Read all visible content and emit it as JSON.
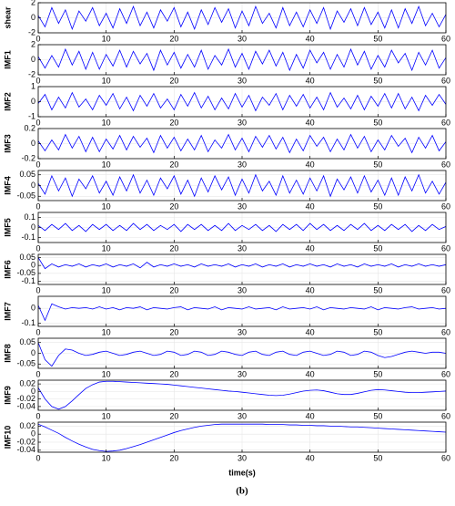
{
  "chart_data": {
    "type": "line",
    "color": "#0000ff",
    "grid": true,
    "xlabel": "time(s)",
    "caption": "(b)",
    "xlim": [
      0,
      60
    ],
    "xticks": [
      0,
      10,
      20,
      30,
      40,
      50,
      60
    ],
    "x": [
      0,
      1,
      2,
      3,
      4,
      5,
      6,
      7,
      8,
      9,
      10,
      11,
      12,
      13,
      14,
      15,
      16,
      17,
      18,
      19,
      20,
      21,
      22,
      23,
      24,
      25,
      26,
      27,
      28,
      29,
      30,
      31,
      32,
      33,
      34,
      35,
      36,
      37,
      38,
      39,
      40,
      41,
      42,
      43,
      44,
      45,
      46,
      47,
      48,
      49,
      50,
      51,
      52,
      53,
      54,
      55,
      56,
      57,
      58,
      59,
      60
    ],
    "panels": [
      {
        "name": "shear",
        "ylim": [
          -2,
          2
        ],
        "yticks": [
          -2,
          0,
          2
        ],
        "values": [
          0.3,
          -1.2,
          1.35,
          -0.75,
          1.05,
          -1.5,
          0.9,
          -0.45,
          1.35,
          -1.05,
          0.6,
          -1.35,
          1.2,
          -0.75,
          1.5,
          -1.05,
          0.75,
          -1.35,
          1.05,
          -0.45,
          1.35,
          -1.2,
          0.75,
          -1.5,
          1.05,
          -0.9,
          1.35,
          -0.6,
          1.2,
          -1.35,
          0.9,
          -1.05,
          1.5,
          -0.75,
          0.6,
          -1.35,
          1.35,
          -1.05,
          0.75,
          -1.2,
          1.05,
          -0.75,
          1.35,
          -1.5,
          0.9,
          -0.6,
          1.2,
          -1.05,
          1.35,
          -0.9,
          0.75,
          -1.35,
          1.05,
          -1.35,
          1.2,
          -0.75,
          1.5,
          -1.05,
          0.6,
          -1.2,
          0.45
        ]
      },
      {
        "name": "IMF1",
        "ylim": [
          -2,
          2
        ],
        "yticks": [
          -2,
          0,
          2
        ],
        "values": [
          0.42,
          -1.12,
          0.56,
          -0.98,
          1.4,
          -0.7,
          1.12,
          -1.26,
          0.98,
          -1.26,
          0.7,
          -0.84,
          1.26,
          -0.98,
          1.12,
          -0.56,
          0.84,
          -1.4,
          1.26,
          -0.7,
          0.98,
          -1.12,
          0.7,
          -0.98,
          1.26,
          -1.26,
          0.56,
          -0.7,
          1.4,
          -0.98,
          0.84,
          -1.26,
          1.12,
          -0.56,
          1.26,
          -0.84,
          0.98,
          -1.4,
          0.7,
          -1.12,
          1.26,
          -0.42,
          0.98,
          -1.26,
          0.7,
          -0.98,
          1.4,
          -0.7,
          1.12,
          -1.26,
          0.56,
          -0.98,
          1.26,
          -0.42,
          0.84,
          -1.4,
          0.98,
          -0.7,
          1.26,
          -1.12,
          0.28
        ]
      },
      {
        "name": "IMF2",
        "ylim": [
          -1,
          1
        ],
        "yticks": [
          -1,
          0,
          1
        ],
        "values": [
          -0.12,
          0.48,
          -0.54,
          0.3,
          -0.42,
          0.6,
          -0.36,
          0.18,
          -0.54,
          0.42,
          -0.24,
          0.54,
          -0.48,
          0.3,
          -0.6,
          0.42,
          -0.3,
          0.54,
          -0.42,
          0.18,
          -0.54,
          0.48,
          -0.3,
          0.6,
          -0.42,
          0.36,
          -0.54,
          0.24,
          -0.48,
          0.54,
          -0.36,
          0.42,
          -0.6,
          0.3,
          -0.24,
          0.54,
          -0.54,
          0.42,
          -0.3,
          0.48,
          -0.42,
          0.3,
          -0.54,
          0.6,
          -0.36,
          0.24,
          -0.48,
          0.42,
          -0.54,
          0.36,
          -0.3,
          0.54,
          -0.42,
          0.54,
          -0.48,
          0.3,
          -0.6,
          0.42,
          -0.24,
          0.48,
          -0.18
        ]
      },
      {
        "name": "IMF3",
        "ylim": [
          -0.2,
          0.2
        ],
        "yticks": [
          -0.2,
          0,
          0.2
        ],
        "values": [
          0.036,
          -0.096,
          0.048,
          -0.084,
          0.12,
          -0.06,
          0.096,
          -0.108,
          0.084,
          -0.108,
          0.06,
          -0.072,
          0.108,
          -0.084,
          0.096,
          -0.048,
          0.072,
          -0.12,
          0.108,
          -0.06,
          0.084,
          -0.096,
          0.06,
          -0.084,
          0.108,
          -0.108,
          0.048,
          -0.06,
          0.12,
          -0.084,
          0.072,
          -0.108,
          0.096,
          -0.048,
          0.108,
          -0.072,
          0.084,
          -0.12,
          0.06,
          -0.096,
          0.108,
          -0.036,
          0.084,
          -0.108,
          0.06,
          -0.084,
          0.12,
          -0.06,
          0.096,
          -0.108,
          0.048,
          -0.084,
          0.108,
          -0.036,
          0.072,
          -0.12,
          0.084,
          -0.06,
          0.108,
          -0.096,
          0.024
        ]
      },
      {
        "name": "IMF4",
        "ylim": [
          -0.07,
          0.07
        ],
        "yticks": [
          -0.05,
          0,
          0.05
        ],
        "values": [
          0.01,
          -0.04,
          0.045,
          -0.025,
          0.035,
          -0.05,
          0.03,
          -0.015,
          0.045,
          -0.035,
          0.02,
          -0.045,
          0.04,
          -0.025,
          0.05,
          -0.035,
          0.025,
          -0.045,
          0.035,
          -0.015,
          0.045,
          -0.04,
          0.025,
          -0.05,
          0.035,
          -0.03,
          0.045,
          -0.02,
          0.04,
          -0.045,
          0.03,
          -0.035,
          0.05,
          -0.025,
          0.02,
          -0.045,
          0.045,
          -0.035,
          0.025,
          -0.04,
          0.035,
          -0.025,
          0.045,
          -0.05,
          0.03,
          -0.02,
          0.04,
          -0.035,
          0.045,
          -0.03,
          0.025,
          -0.045,
          0.035,
          -0.045,
          0.04,
          -0.025,
          0.05,
          -0.035,
          0.02,
          -0.04,
          0.015
        ]
      },
      {
        "name": "IMF5",
        "ylim": [
          -0.15,
          0.15
        ],
        "yticks": [
          -0.1,
          0,
          0.1
        ],
        "values": [
          0.02,
          -0.03,
          0.03,
          -0.02,
          0.04,
          -0.03,
          0.02,
          -0.04,
          0.03,
          -0.02,
          0.03,
          -0.03,
          0.02,
          -0.03,
          0.04,
          -0.02,
          0.03,
          -0.03,
          0.02,
          -0.02,
          0.03,
          -0.04,
          0.03,
          -0.02,
          0.03,
          -0.03,
          0.02,
          -0.03,
          0.04,
          -0.03,
          0.02,
          -0.02,
          0.03,
          -0.03,
          0.02,
          -0.04,
          0.03,
          -0.02,
          0.03,
          -0.03,
          0.04,
          -0.02,
          0.03,
          -0.03,
          0.02,
          -0.03,
          0.03,
          -0.02,
          0.04,
          -0.03,
          0.02,
          -0.03,
          0.03,
          -0.02,
          0.03,
          -0.04,
          0.02,
          -0.03,
          0.03,
          -0.02,
          0.01
        ]
      },
      {
        "name": "IMF6",
        "ylim": [
          -0.12,
          0.07
        ],
        "yticks": [
          -0.1,
          -0.05,
          0,
          0.05
        ],
        "values": [
          0.05,
          -0.02,
          0.01,
          -0.01,
          0.005,
          -0.005,
          0.01,
          -0.01,
          0.005,
          -0.005,
          0.01,
          -0.01,
          0.005,
          -0.005,
          0.01,
          -0.015,
          0.02,
          -0.01,
          0.005,
          -0.005,
          0.01,
          -0.005,
          0.005,
          -0.01,
          0.01,
          -0.005,
          0.005,
          -0.005,
          0.01,
          -0.01,
          0.005,
          -0.005,
          0.01,
          -0.01,
          0.005,
          -0.005,
          0.01,
          -0.01,
          0.005,
          -0.005,
          0.01,
          -0.005,
          0.005,
          -0.01,
          0.01,
          -0.005,
          0.005,
          -0.01,
          0.01,
          -0.005,
          0.005,
          -0.005,
          0.01,
          -0.01,
          0.005,
          -0.005,
          0.01,
          -0.005,
          0.005,
          -0.005,
          0.005
        ]
      },
      {
        "name": "IMF7",
        "ylim": [
          -0.12,
          0.08
        ],
        "yticks": [
          -0.1,
          0
        ],
        "values": [
          0.02,
          -0.08,
          0.03,
          0.01,
          -0.005,
          0.005,
          0,
          0.005,
          -0.005,
          0.01,
          -0.005,
          0.005,
          -0.01,
          0.005,
          0,
          0.01,
          -0.01,
          0.005,
          0,
          -0.005,
          0.005,
          0.01,
          -0.01,
          0.005,
          0,
          -0.005,
          0.01,
          -0.01,
          0.005,
          0,
          -0.005,
          0.01,
          -0.005,
          0,
          0.005,
          -0.01,
          0.01,
          -0.005,
          0,
          0.005,
          -0.005,
          0.01,
          -0.01,
          0.005,
          0,
          -0.005,
          0.005,
          0,
          -0.005,
          0.01,
          -0.01,
          0.005,
          0,
          -0.005,
          0.005,
          0.01,
          -0.005,
          0,
          0.005,
          -0.005,
          0
        ]
      },
      {
        "name": "IMF8",
        "ylim": [
          -0.07,
          0.07
        ],
        "yticks": [
          -0.05,
          0,
          0.05
        ],
        "values": [
          0.05,
          -0.03,
          -0.06,
          -0.01,
          0.02,
          0.015,
          0,
          -0.01,
          -0.005,
          0.005,
          0.01,
          0,
          -0.01,
          -0.005,
          0.005,
          0.01,
          0,
          -0.01,
          -0.005,
          0.01,
          0.005,
          -0.01,
          -0.005,
          0.01,
          0.005,
          -0.01,
          -0.005,
          0.01,
          0.005,
          -0.005,
          -0.01,
          0.005,
          0.01,
          -0.005,
          -0.01,
          0.005,
          0.01,
          -0.005,
          -0.01,
          0.005,
          0.01,
          0,
          -0.01,
          -0.005,
          0.01,
          0.005,
          -0.01,
          -0.005,
          0.01,
          0.005,
          -0.01,
          -0.02,
          -0.015,
          -0.005,
          0.005,
          0.01,
          0.005,
          0,
          0.005,
          0.005,
          0
        ]
      },
      {
        "name": "IMF9",
        "ylim": [
          -0.05,
          0.03
        ],
        "yticks": [
          -0.04,
          -0.02,
          0,
          0.02
        ],
        "values": [
          0.01,
          -0.02,
          -0.04,
          -0.047,
          -0.04,
          -0.025,
          -0.008,
          0.008,
          0.018,
          0.025,
          0.027,
          0.027,
          0.026,
          0.025,
          0.024,
          0.023,
          0.022,
          0.021,
          0.02,
          0.019,
          0.017,
          0.015,
          0.013,
          0.011,
          0.009,
          0.007,
          0.005,
          0.003,
          0.001,
          0,
          -0.002,
          -0.004,
          -0.006,
          -0.008,
          -0.01,
          -0.011,
          -0.01,
          -0.007,
          -0.003,
          0.001,
          0.003,
          0.004,
          0.002,
          -0.002,
          -0.006,
          -0.008,
          -0.008,
          -0.005,
          -0.001,
          0.003,
          0.005,
          0.004,
          0.002,
          0,
          -0.002,
          -0.003,
          -0.003,
          -0.002,
          -0.001,
          0,
          0.001
        ]
      },
      {
        "name": "IMF10",
        "ylim": [
          -0.045,
          0.03
        ],
        "yticks": [
          -0.04,
          -0.02,
          0,
          0.02
        ],
        "values": [
          0.025,
          0.018,
          0.01,
          0.002,
          -0.008,
          -0.017,
          -0.025,
          -0.032,
          -0.038,
          -0.041,
          -0.043,
          -0.042,
          -0.04,
          -0.036,
          -0.031,
          -0.026,
          -0.02,
          -0.014,
          -0.008,
          -0.002,
          0.004,
          0.009,
          0.013,
          0.017,
          0.02,
          0.022,
          0.024,
          0.025,
          0.025,
          0.025,
          0.025,
          0.025,
          0.025,
          0.025,
          0.024,
          0.024,
          0.024,
          0.023,
          0.023,
          0.022,
          0.022,
          0.021,
          0.021,
          0.02,
          0.02,
          0.019,
          0.018,
          0.018,
          0.017,
          0.016,
          0.015,
          0.014,
          0.013,
          0.012,
          0.011,
          0.01,
          0.009,
          0.008,
          0.007,
          0.006,
          0.005
        ]
      }
    ]
  }
}
